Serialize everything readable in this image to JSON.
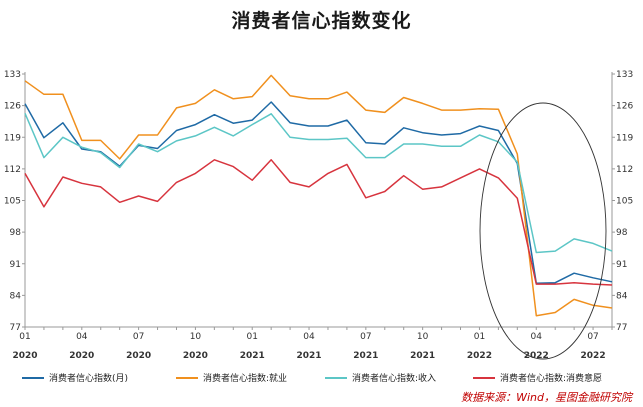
{
  "chart_data": {
    "type": "line",
    "title": "消费者信心指数变化",
    "xlabel": "",
    "ylabel": "",
    "ylim": [
      77,
      133
    ],
    "yticks": [
      77,
      84,
      91,
      98,
      105,
      112,
      119,
      126,
      133
    ],
    "xtick_labels": [
      {
        "month": "01",
        "year": "2020",
        "index": 0
      },
      {
        "month": "04",
        "year": "2020",
        "index": 3
      },
      {
        "month": "07",
        "year": "2020",
        "index": 6
      },
      {
        "month": "10",
        "year": "2020",
        "index": 9
      },
      {
        "month": "01",
        "year": "2021",
        "index": 12
      },
      {
        "month": "04",
        "year": "2021",
        "index": 15
      },
      {
        "month": "07",
        "year": "2021",
        "index": 18
      },
      {
        "month": "10",
        "year": "2021",
        "index": 21
      },
      {
        "month": "01",
        "year": "2022",
        "index": 24
      },
      {
        "month": "04",
        "year": "2022",
        "index": 27
      },
      {
        "month": "07",
        "year": "2022",
        "index": 30
      }
    ],
    "x": [
      "2020-01",
      "2020-02",
      "2020-03",
      "2020-04",
      "2020-05",
      "2020-06",
      "2020-07",
      "2020-08",
      "2020-09",
      "2020-10",
      "2020-11",
      "2020-12",
      "2021-01",
      "2021-02",
      "2021-03",
      "2021-04",
      "2021-05",
      "2021-06",
      "2021-07",
      "2021-08",
      "2021-09",
      "2021-10",
      "2021-11",
      "2021-12",
      "2022-01",
      "2022-02",
      "2022-03",
      "2022-04",
      "2022-05",
      "2022-06",
      "2022-07",
      "2022-08"
    ],
    "series": [
      {
        "name": "消费者信心指数(月)",
        "color": "#1f6aa5",
        "values": [
          126.4,
          118.9,
          122.2,
          116.4,
          115.8,
          112.6,
          117.2,
          116.5,
          120.5,
          121.8,
          124.0,
          122.1,
          122.8,
          126.8,
          122.2,
          121.5,
          121.5,
          122.8,
          117.8,
          117.5,
          121.1,
          120.0,
          119.5,
          119.8,
          121.5,
          120.5,
          113.2,
          86.7,
          86.8,
          88.9,
          87.9,
          87.0
        ]
      },
      {
        "name": "消费者信心指数:就业",
        "color": "#f0901e",
        "values": [
          131.5,
          128.5,
          128.5,
          118.3,
          118.3,
          114.2,
          119.5,
          119.5,
          125.5,
          126.5,
          129.5,
          127.5,
          128.0,
          132.7,
          128.2,
          127.5,
          127.5,
          129.0,
          125.0,
          124.5,
          127.8,
          126.5,
          125.0,
          125.0,
          125.3,
          125.2,
          115.3,
          79.5,
          80.2,
          83.1,
          81.8,
          81.2
        ]
      },
      {
        "name": "消费者信心指数:收入",
        "color": "#5cc6c6",
        "values": [
          124.3,
          114.5,
          119.0,
          116.8,
          115.6,
          112.3,
          117.5,
          115.8,
          118.2,
          119.3,
          121.2,
          119.3,
          121.8,
          124.2,
          119.0,
          118.5,
          118.5,
          118.8,
          114.5,
          114.5,
          117.5,
          117.5,
          117.0,
          117.0,
          119.5,
          118.0,
          113.5,
          93.5,
          93.8,
          96.5,
          95.5,
          93.8
        ]
      },
      {
        "name": "消费者信心指数:消费意愿",
        "color": "#d7343e",
        "values": [
          111.0,
          103.6,
          110.2,
          108.8,
          108.0,
          104.6,
          106.0,
          104.8,
          109.0,
          111.0,
          114.0,
          112.5,
          109.5,
          114.0,
          109.0,
          108.0,
          111.0,
          113.0,
          105.6,
          107.0,
          110.5,
          107.5,
          108.0,
          110.0,
          112.0,
          110.0,
          105.5,
          86.5,
          86.5,
          86.8,
          86.5,
          86.3
        ]
      }
    ],
    "legend_position": "bottom",
    "grid": false,
    "annotation": "ellipse highlighting 2022-03 to 2022-08"
  },
  "source_text": "数据来源：Wind，星图金融研究院"
}
